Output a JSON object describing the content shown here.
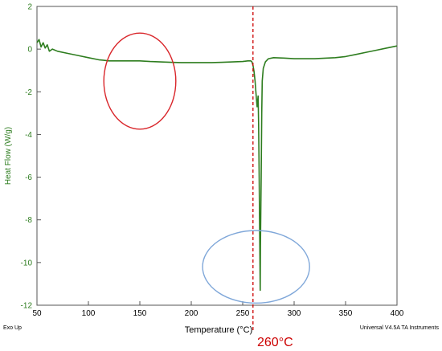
{
  "chart_data": {
    "type": "line",
    "xlabel": "Temperature (°C)",
    "ylabel": "Heat Flow (W/g)",
    "xlim": [
      50,
      400
    ],
    "ylim": [
      -12,
      2
    ],
    "xticks": [
      50,
      100,
      150,
      200,
      250,
      300,
      350,
      400
    ],
    "yticks": [
      2,
      0,
      -2,
      -4,
      -6,
      -8,
      -10,
      -12
    ],
    "series": [
      {
        "color": "#2e7d1f",
        "x": [
          50,
          52,
          54,
          56,
          58,
          60,
          62,
          65,
          70,
          80,
          90,
          100,
          110,
          120,
          130,
          140,
          150,
          160,
          170,
          180,
          190,
          200,
          210,
          220,
          230,
          240,
          250,
          255,
          258,
          259,
          260,
          261,
          262,
          263,
          264,
          265,
          265.5,
          266,
          266.5,
          267,
          267.3,
          268,
          268.5,
          269,
          270,
          272,
          275,
          280,
          290,
          300,
          320,
          340,
          350,
          360,
          370,
          380,
          390,
          400
        ],
        "y": [
          0.3,
          0.45,
          0.1,
          0.3,
          0.05,
          0.2,
          -0.1,
          0.0,
          -0.1,
          -0.2,
          -0.3,
          -0.4,
          -0.5,
          -0.55,
          -0.55,
          -0.55,
          -0.55,
          -0.58,
          -0.6,
          -0.62,
          -0.63,
          -0.63,
          -0.63,
          -0.63,
          -0.62,
          -0.6,
          -0.58,
          -0.55,
          -0.55,
          -0.6,
          -0.75,
          -1.05,
          -1.5,
          -2.1,
          -2.7,
          -2.2,
          -3.5,
          -6.0,
          -8.5,
          -11.3,
          -9.2,
          -6.0,
          -3.0,
          -1.5,
          -0.9,
          -0.6,
          -0.45,
          -0.4,
          -0.42,
          -0.45,
          -0.45,
          -0.4,
          -0.35,
          -0.25,
          -0.15,
          -0.05,
          0.05,
          0.15
        ]
      }
    ]
  },
  "footer": {
    "left": "Exo Up",
    "right": "Universal V4.5A TA Instruments"
  },
  "annotation": {
    "label": "260°C",
    "x": 260,
    "color": "#cc0000"
  },
  "highlights": [
    {
      "color": "#d9262b",
      "cx": 150,
      "cy": -1.5,
      "rx": 35,
      "ry": 2.25
    },
    {
      "color": "#7fa7d9",
      "cx": 263,
      "cy": -10.2,
      "rx": 52,
      "ry": 1.7
    }
  ]
}
